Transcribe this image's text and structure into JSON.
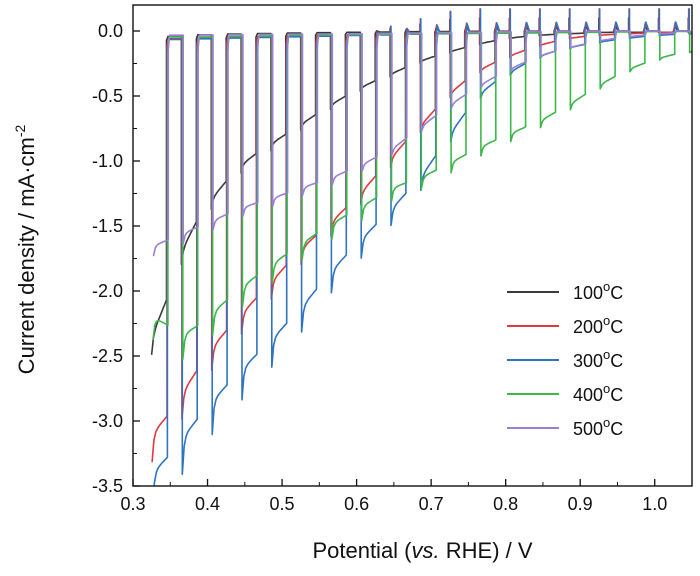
{
  "chart_data": {
    "type": "line",
    "xlabel": {
      "pre": "Potential (",
      "ital": "vs.",
      "post": " RHE) / V"
    },
    "ylabel": {
      "main": "Current density / mA·cm",
      "sup": "-2"
    },
    "xlim": [
      0.3,
      1.05
    ],
    "ylim": [
      -3.5,
      0.2
    ],
    "xticks": [
      0.3,
      0.4,
      0.5,
      0.6,
      0.7,
      0.8,
      0.9,
      1.0
    ],
    "xtick_labels": [
      "0.3",
      "0.4",
      "0.5",
      "0.6",
      "0.7",
      "0.8",
      "0.9",
      "1.0"
    ],
    "yticks": [
      0.0,
      -0.5,
      -1.0,
      -1.5,
      -2.0,
      -2.5,
      -3.0,
      -3.5
    ],
    "ytick_labels": [
      "0.0",
      "-0.5",
      "-1.0",
      "-1.5",
      "-2.0",
      "-2.5",
      "-3.0",
      "-3.5"
    ],
    "grid": false,
    "legend_position": "bottom-right",
    "chopped": {
      "x_start": 0.325,
      "x_end": 1.05,
      "period": 0.04,
      "dark_value": 0.0
    },
    "series": [
      {
        "name": "100",
        "unit": "oC",
        "color": "#3a3a3a",
        "start_x": 0.325,
        "start_y": -2.35,
        "end_y": -0.01,
        "decay": 0.06,
        "tail": -0.03,
        "spike": 0.1
      },
      {
        "name": "200",
        "unit": "oC",
        "color": "#e0393e",
        "start_x": 0.325,
        "start_y": -3.1,
        "end_y": -0.01,
        "decay": 0.07,
        "tail": -0.06,
        "spike": 0.17
      },
      {
        "name": "300",
        "unit": "oC",
        "color": "#2f74c0",
        "start_x": 0.325,
        "start_y": -3.4,
        "end_y": -0.02,
        "decay": 0.09,
        "tail": -0.08,
        "spike": 0.17
      },
      {
        "name": "400",
        "unit": "oC",
        "color": "#3cb84a",
        "start_x": 0.325,
        "start_y": -2.2,
        "end_y": -0.15,
        "decay": 0.08,
        "tail": -0.12,
        "spike": 0.0
      },
      {
        "name": "500",
        "unit": "oC",
        "color": "#9b7fd4",
        "start_x": 0.325,
        "start_y": -1.65,
        "end_y": -0.01,
        "decay": 0.05,
        "tail": -0.05,
        "spike": 0.0
      }
    ],
    "envelope_points": {
      "100": [
        [
          0.33,
          -2.35
        ],
        [
          0.37,
          -1.6
        ],
        [
          0.41,
          -1.25
        ],
        [
          0.45,
          -1.0
        ],
        [
          0.49,
          -0.85
        ],
        [
          0.53,
          -0.7
        ],
        [
          0.57,
          -0.55
        ],
        [
          0.61,
          -0.42
        ],
        [
          0.65,
          -0.32
        ],
        [
          0.69,
          -0.22
        ],
        [
          0.73,
          -0.15
        ],
        [
          0.77,
          -0.09
        ],
        [
          0.81,
          -0.05
        ],
        [
          0.85,
          -0.03
        ],
        [
          0.89,
          -0.02
        ],
        [
          0.93,
          -0.01
        ],
        [
          0.97,
          -0.01
        ],
        [
          1.01,
          -0.01
        ],
        [
          1.05,
          -0.01
        ]
      ],
      "200": [
        [
          0.33,
          -3.1
        ],
        [
          0.37,
          -2.75
        ],
        [
          0.41,
          -2.4
        ],
        [
          0.45,
          -2.15
        ],
        [
          0.49,
          -1.9
        ],
        [
          0.53,
          -1.65
        ],
        [
          0.57,
          -1.45
        ],
        [
          0.61,
          -1.22
        ],
        [
          0.65,
          -0.95
        ],
        [
          0.69,
          -0.7
        ],
        [
          0.73,
          -0.45
        ],
        [
          0.77,
          -0.28
        ],
        [
          0.81,
          -0.18
        ],
        [
          0.85,
          -0.1
        ],
        [
          0.89,
          -0.05
        ],
        [
          0.93,
          -0.03
        ],
        [
          0.97,
          -0.02
        ],
        [
          1.01,
          -0.01
        ],
        [
          1.05,
          -0.01
        ]
      ],
      "300": [
        [
          0.33,
          -3.4
        ],
        [
          0.37,
          -3.1
        ],
        [
          0.41,
          -2.82
        ],
        [
          0.45,
          -2.58
        ],
        [
          0.49,
          -2.35
        ],
        [
          0.53,
          -2.1
        ],
        [
          0.57,
          -1.82
        ],
        [
          0.61,
          -1.58
        ],
        [
          0.65,
          -1.35
        ],
        [
          0.69,
          -1.1
        ],
        [
          0.73,
          -0.75
        ],
        [
          0.77,
          -0.45
        ],
        [
          0.81,
          -0.3
        ],
        [
          0.85,
          -0.18
        ],
        [
          0.89,
          -0.12
        ],
        [
          0.93,
          -0.08
        ],
        [
          0.97,
          -0.05
        ],
        [
          1.01,
          -0.03
        ],
        [
          1.05,
          -0.02
        ]
      ],
      "400": [
        [
          0.33,
          -2.2
        ],
        [
          0.37,
          -2.35
        ],
        [
          0.41,
          -2.15
        ],
        [
          0.45,
          -1.95
        ],
        [
          0.49,
          -1.78
        ],
        [
          0.53,
          -1.62
        ],
        [
          0.57,
          -1.47
        ],
        [
          0.61,
          -1.34
        ],
        [
          0.65,
          -1.2
        ],
        [
          0.69,
          -1.12
        ],
        [
          0.73,
          -1.0
        ],
        [
          0.77,
          -0.88
        ],
        [
          0.81,
          -0.78
        ],
        [
          0.85,
          -0.68
        ],
        [
          0.89,
          -0.55
        ],
        [
          0.93,
          -0.4
        ],
        [
          0.97,
          -0.28
        ],
        [
          1.01,
          -0.2
        ],
        [
          1.05,
          -0.15
        ]
      ],
      "500": [
        [
          0.33,
          -1.65
        ],
        [
          0.37,
          -1.55
        ],
        [
          0.41,
          -1.45
        ],
        [
          0.45,
          -1.35
        ],
        [
          0.49,
          -1.28
        ],
        [
          0.53,
          -1.2
        ],
        [
          0.57,
          -1.12
        ],
        [
          0.61,
          -1.02
        ],
        [
          0.65,
          -0.9
        ],
        [
          0.69,
          -0.72
        ],
        [
          0.73,
          -0.55
        ],
        [
          0.77,
          -0.4
        ],
        [
          0.81,
          -0.28
        ],
        [
          0.85,
          -0.18
        ],
        [
          0.89,
          -0.12
        ],
        [
          0.93,
          -0.07
        ],
        [
          0.97,
          -0.04
        ],
        [
          1.01,
          -0.02
        ],
        [
          1.05,
          -0.01
        ]
      ]
    }
  }
}
